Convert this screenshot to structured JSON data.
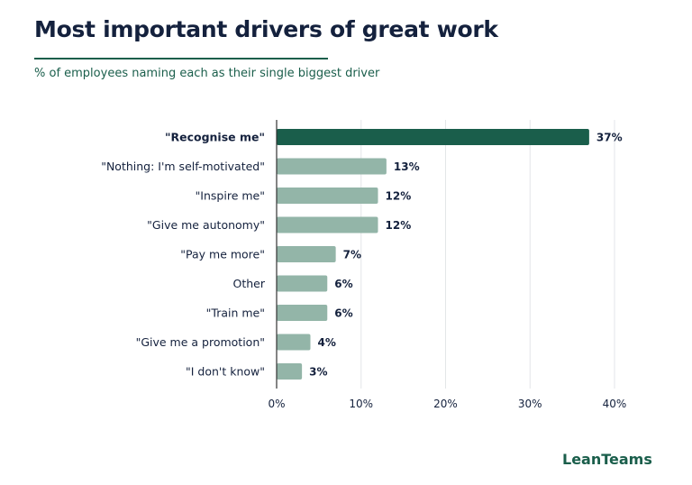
{
  "header": {
    "title": "Most important drivers of great work",
    "subtitle": "% of employees naming each as their single biggest driver"
  },
  "brand": {
    "name": "LeanTeams"
  },
  "colors": {
    "highlight": "#1a5e4b",
    "bar": "#93b5a8",
    "label": "#14213d",
    "grid": "#e3e6e8",
    "axis": "#333333"
  },
  "chart_data": {
    "type": "bar",
    "orientation": "horizontal",
    "categories": [
      "\"Recognise me\"",
      "\"Nothing: I'm self-motivated\"",
      "\"Inspire me\"",
      "\"Give me autonomy\"",
      "\"Pay me more\"",
      "Other",
      "\"Train me\"",
      "\"Give me a promotion\"",
      "\"I don't know\""
    ],
    "values": [
      37,
      13,
      12,
      12,
      7,
      6,
      6,
      4,
      3
    ],
    "value_labels": [
      "37%",
      "13%",
      "12%",
      "12%",
      "7%",
      "6%",
      "6%",
      "4%",
      "3%"
    ],
    "highlighted": [
      "\"Recognise me\""
    ],
    "xlim": [
      0,
      40
    ],
    "xticks": [
      0,
      10,
      20,
      30,
      40
    ],
    "xtick_labels": [
      "0%",
      "10%",
      "20%",
      "30%",
      "40%"
    ],
    "grid": true,
    "legend": "none"
  }
}
